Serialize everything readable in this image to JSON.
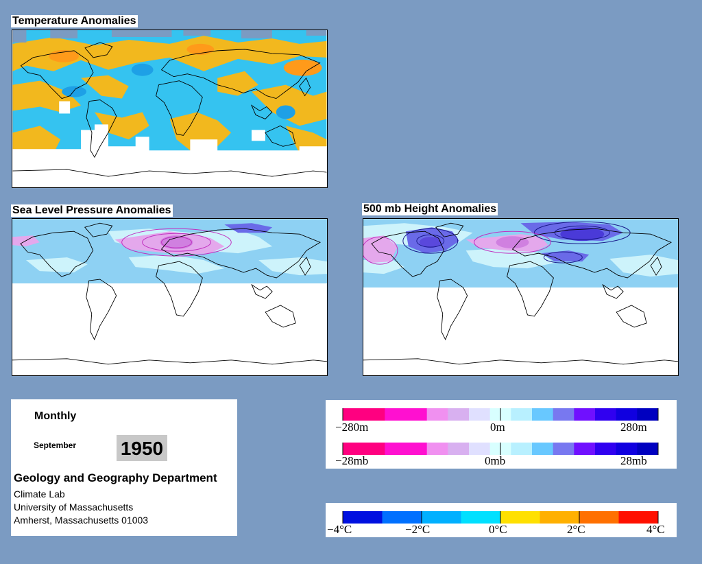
{
  "panels": {
    "temperature": {
      "title": "Temperature Anomalies"
    },
    "slp": {
      "title": "Sea Level Pressure Anomalies"
    },
    "height500": {
      "title": "500 mb Height Anomalies"
    }
  },
  "info": {
    "period": "Monthly",
    "month": "September",
    "year": "1950",
    "department": "Geology and Geography Department",
    "lines": [
      "Climate Lab",
      "University of Massachusetts",
      "Amherst, Massachusetts 01003"
    ]
  },
  "legends": {
    "height": {
      "labels": [
        "−280m",
        "0m",
        "280m"
      ],
      "colors": [
        "#ff0080",
        "#ff0080",
        "#ff10d0",
        "#ff10d0",
        "#f090f0",
        "#d8b0f0",
        "#e0e0ff",
        "#d8ffff",
        "#b8f0ff",
        "#68c8ff",
        "#7878f0",
        "#7010ff",
        "#3000f0",
        "#1000e0",
        "#0000c0"
      ]
    },
    "pressure": {
      "labels": [
        "−28mb",
        "0mb",
        "28mb"
      ],
      "colors": [
        "#ff0080",
        "#ff0080",
        "#ff10d0",
        "#ff10d0",
        "#f090f0",
        "#d8b0f0",
        "#e0e0ff",
        "#d8ffff",
        "#b8f0ff",
        "#68c8ff",
        "#7878f0",
        "#7010ff",
        "#3000f0",
        "#1000e0",
        "#0000c0"
      ]
    },
    "temperature": {
      "labels": [
        "−4°C",
        "−2°C",
        "0°C",
        "2°C",
        "4°C"
      ],
      "colors": [
        "#0010e0",
        "#0070ff",
        "#00b0ff",
        "#00e0ff",
        "#ffe000",
        "#ffb000",
        "#ff7000",
        "#ff1000"
      ]
    }
  },
  "colors": {
    "background": "#7b9bc2",
    "cold": "#35c3f0",
    "warm": "#f2b81e",
    "pale_blue": "#cdf3fb",
    "mid_blue": "#8ed1f3",
    "low_pressure": "#e4a8ec",
    "deep_blue": "#6a6ae8"
  }
}
